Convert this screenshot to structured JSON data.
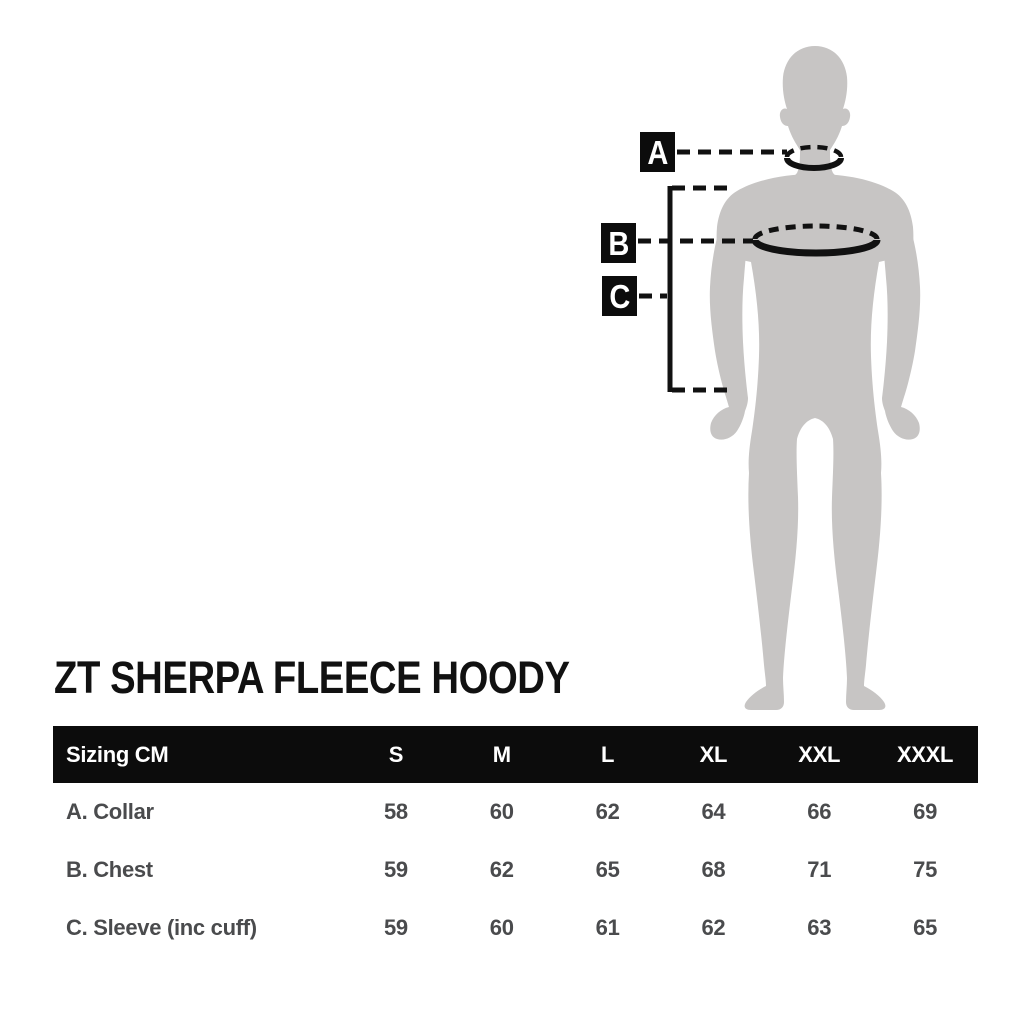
{
  "title": "ZT SHERPA FLEECE HOODY",
  "diagram": {
    "marker_labels": [
      "A",
      "B",
      "C"
    ],
    "silhouette_color": "#c7c5c4",
    "line_color": "#111111",
    "marker_bg": "#0c0c0c",
    "marker_text_color": "#ffffff"
  },
  "table": {
    "header_label": "Sizing CM",
    "sizes": [
      "S",
      "M",
      "L",
      "XL",
      "XXL",
      "XXXL"
    ],
    "rows": [
      {
        "label": "A. Collar",
        "values": [
          "58",
          "60",
          "62",
          "64",
          "66",
          "69"
        ]
      },
      {
        "label": "B. Chest",
        "values": [
          "59",
          "62",
          "65",
          "68",
          "71",
          "75"
        ]
      },
      {
        "label": "C. Sleeve (inc cuff)",
        "values": [
          "59",
          "60",
          "61",
          "62",
          "63",
          "65"
        ]
      }
    ],
    "header_bg": "#0c0c0c",
    "header_text_color": "#ffffff",
    "row_text_color": "#4a4b4d"
  },
  "chart_data": {
    "type": "table",
    "title": "ZT SHERPA FLEECE HOODY",
    "columns": [
      "Sizing CM",
      "S",
      "M",
      "L",
      "XL",
      "XXL",
      "XXXL"
    ],
    "rows": [
      [
        "A. Collar",
        58,
        60,
        62,
        64,
        66,
        69
      ],
      [
        "B. Chest",
        59,
        62,
        65,
        68,
        71,
        75
      ],
      [
        "C. Sleeve (inc cuff)",
        59,
        60,
        61,
        62,
        63,
        65
      ]
    ]
  }
}
